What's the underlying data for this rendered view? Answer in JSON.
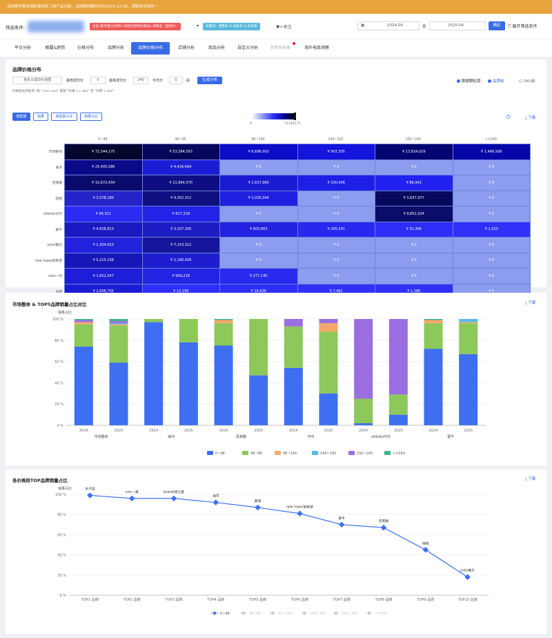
{
  "banner": {
    "text": "试用账号暂未授权使用到了新产品功能，试用期到期时间为2025-12-28，请联系试用同一"
  },
  "filter": {
    "label": "筛选条件:",
    "tag_red": "主品 海河/富力/深圳>日历的/新款生鲜品>调味品（品牌价）",
    "tag_cyan": "关键词：调整买 ot 具备买 ot 利润率",
    "follow": "+关注",
    "start_date": "2024-04",
    "to": "至",
    "end_date": "2025-04",
    "ok": "确定",
    "expand": "展开筛选条件"
  },
  "tabs": [
    {
      "label": "平台分析"
    },
    {
      "label": "概要&趋势"
    },
    {
      "label": "价格分布"
    },
    {
      "label": "品牌分析"
    },
    {
      "label": "品牌价格分布"
    },
    {
      "label": "店铺分析"
    },
    {
      "label": "商品分析"
    },
    {
      "label": "自定义分析"
    },
    {
      "label": "消费者画像"
    },
    {
      "label": "海外电商洞察"
    }
  ],
  "price_dist": {
    "title": "品牌价格分布",
    "custom_range": "自定义成交价范围",
    "min_label": "最低成交价",
    "min_value": "0",
    "max_label": "最高成交价",
    "max_value": "240",
    "avg_label": "平均分",
    "avg_value": "5",
    "seg": "段",
    "generate": "生成分布",
    "hint": "价格段左闭右开, 如: \"xxx~xxx\" 意指 \"价格 >= xxx\" 且 \"价格 < xxx\"",
    "radio_label": "数据颗粒度:",
    "radio_brand": "品牌级",
    "radio_sku": "SKU级",
    "view_buttons": [
      "销售额",
      "销量",
      "销售额占比",
      "销量占比"
    ],
    "legend_min": "0",
    "legend_max": "72344175",
    "download": "下载"
  },
  "heatmap": {
    "columns": [
      "0~48",
      "48~96",
      "96~144",
      "144~192",
      "192~240",
      ">=240"
    ],
    "rows": [
      {
        "brand": "市场整体",
        "cells": [
          "¥ 72,344,175",
          "¥ 53,384,563",
          "¥ 6,696,002",
          "¥ 907,305",
          "¥ 13,824,029",
          "¥ 1,466,508"
        ],
        "colors": [
          "#05052e",
          "#06065a",
          "#0c0cc8",
          "#1414dc",
          "#050572",
          "#0606a8"
        ]
      },
      {
        "brand": "海河",
        "cells": [
          "¥ 25,405,586",
          "¥ 4,416,694",
          "¥ 0",
          "¥ 0",
          "¥ 0",
          "¥ 0"
        ],
        "colors": [
          "#0a0a88",
          "#1d1dd6",
          "#8c9cef",
          "#8c9cef",
          "#8c9cef",
          "#8c9cef"
        ]
      },
      {
        "brand": "百菲酪",
        "cells": [
          "¥ 15,672,434",
          "¥ 11,864,370",
          "¥ 1,637,960",
          "¥ 330,406",
          "¥ 86,942",
          "¥ 0"
        ],
        "colors": [
          "#0b0b6e",
          "#0e0e82",
          "#1b1bd4",
          "#1e1ee6",
          "#2222f0",
          "#8c9cef"
        ]
      },
      {
        "brand": "桂格",
        "cells": [
          "¥ 3,378,180",
          "¥ 9,352,312",
          "¥ 1,030,344",
          "¥ 0",
          "¥ 3,837,977",
          "¥ 0"
        ],
        "colors": [
          "#2424c8",
          "#0f0f80",
          "#2020e0",
          "#8c9cef",
          "#08085c",
          "#8c9cef"
        ]
      },
      {
        "brand": "sikkidsi可仔",
        "cells": [
          "¥ 94,321",
          "¥ 817,318",
          "¥ 0",
          "¥ 0",
          "¥ 9,851,524",
          "¥ 0"
        ],
        "colors": [
          "#2b2bf4",
          "#2323e8",
          "#8c9cef",
          "#8c9cef",
          "#0c0c6a",
          "#8c9cef"
        ]
      },
      {
        "brand": "蒙牛",
        "cells": [
          "¥ 4,628,813",
          "¥ 3,107,330",
          "¥ 603,863",
          "¥ 265,541",
          "¥ 31,306",
          "¥ 1,523"
        ],
        "colors": [
          "#1a1ac0",
          "#1c1cc4",
          "#2222e0",
          "#2828f0",
          "#2e2ef8",
          "#3030fa"
        ]
      },
      {
        "brand": "julio/菊乐",
        "cells": [
          "¥ 1,304,623",
          "¥ 7,153,312",
          "¥ 0",
          "¥ 0",
          "¥ 0",
          "¥ 0"
        ],
        "colors": [
          "#2222dc",
          "#15159c",
          "#8c9cef",
          "#8c9cef",
          "#8c9cef",
          "#8c9cef"
        ]
      },
      {
        "brand": "new hope/新希望",
        "cells": [
          "¥ 5,215,236",
          "¥ 2,180,429",
          "¥ 0",
          "¥ 0",
          "¥ 0",
          "¥ 0"
        ],
        "colors": [
          "#1717b8",
          "#1e1ed0",
          "#8c9cef",
          "#8c9cef",
          "#8c9cef",
          "#8c9cef"
        ]
      },
      {
        "brand": "oato一利",
        "cells": [
          "¥ 1,822,547",
          "¥ 909,218",
          "¥ 277,145",
          "¥ 0",
          "¥ 0",
          "¥ 0"
        ],
        "colors": [
          "#1e1ed8",
          "#2424e4",
          "#2a2aee",
          "#8c9cef",
          "#8c9cef",
          "#8c9cef"
        ]
      },
      {
        "brand": "光明",
        "cells": [
          "¥ 2,606,705",
          "¥ 13,199",
          "¥ 18,636",
          "¥ 7,482",
          "¥ 1,186",
          "¥ 0"
        ],
        "colors": [
          "#1c1cd2",
          "#2e2ef8",
          "#2e2ef6",
          "#3030fa",
          "#3030fa",
          "#8c9cef"
        ]
      }
    ]
  },
  "share_chart": {
    "title": "市场整体 & TOP5品牌销量占比对比",
    "download": "下载",
    "ylabel": "销量占比",
    "yticks": [
      "100 %",
      "80 %",
      "60 %",
      "40 %",
      "20 %",
      "0 %"
    ]
  },
  "top_chart": {
    "title": "各价格段TOP品牌销量占比",
    "download": "下载",
    "ylabel": "销量占比",
    "yticks": [
      "100 %",
      "80 %",
      "60 %",
      "40 %",
      "20 %",
      "0 %"
    ]
  },
  "chart_data": [
    {
      "type": "bar",
      "stacked": true,
      "title": "市场整体 & TOP5品牌销量占比对比",
      "ylabel": "销量占比",
      "ylim": [
        0,
        100
      ],
      "unit": "%",
      "categories": [
        "2024",
        "2025",
        "2024",
        "2025",
        "2024",
        "2025",
        "2024",
        "2025",
        "2024",
        "2025",
        "2024",
        "2025"
      ],
      "groups": [
        "市场整体",
        "海河",
        "百菲酪",
        "可可",
        "sikkidsi可仔",
        "蒙牛"
      ],
      "series": [
        {
          "name": "0~48",
          "color": "#3d6ff0",
          "values": [
            74,
            59,
            97,
            78,
            75,
            47,
            54,
            30,
            2,
            10,
            72,
            67
          ]
        },
        {
          "name": "48~96",
          "color": "#8cc85a",
          "values": [
            21,
            35,
            3,
            22,
            21,
            53,
            39,
            58,
            23,
            19,
            24,
            29
          ]
        },
        {
          "name": "96~144",
          "color": "#f5a86a",
          "values": [
            2,
            1,
            0,
            0,
            3,
            0,
            0,
            8,
            0,
            0,
            3,
            1
          ]
        },
        {
          "name": "144~192",
          "color": "#5ab9e8",
          "values": [
            0,
            1,
            0,
            0,
            0,
            0,
            0,
            0,
            0,
            0,
            0,
            3
          ]
        },
        {
          "name": "192~240",
          "color": "#9b6fe0",
          "values": [
            2,
            2,
            0,
            0,
            0,
            0,
            7,
            4,
            75,
            71,
            0,
            0
          ]
        },
        {
          "name": ">=240",
          "color": "#3cb48c",
          "values": [
            1,
            2,
            0,
            0,
            1,
            0,
            0,
            0,
            0,
            0,
            1,
            0
          ]
        }
      ]
    },
    {
      "type": "line",
      "title": "各价格段TOP品牌销量占比",
      "ylabel": "销量占比",
      "ylim": [
        0,
        100
      ],
      "unit": "%",
      "categories": [
        "TOP1 品牌",
        "TOP2 品牌",
        "TOP3 品牌",
        "TOP4 品牌",
        "TOP5 品牌",
        "TOP6 品牌",
        "TOP7 品牌",
        "TOP8 品牌",
        "TOP9 品牌",
        "TOP10 品牌"
      ],
      "series": [
        {
          "name": "0~48",
          "color": "#3d6ff0",
          "values": [
            99,
            96,
            96,
            92,
            87,
            81,
            70,
            67,
            45,
            18
          ],
          "labels": [
            "宇子园",
            "nmr一再",
            "brand/德兰霍",
            "海河",
            "蒙语",
            "new hope/新希望",
            "蒙牛",
            "百菲酪",
            "桂格",
            "julio/菊乐"
          ]
        }
      ],
      "legend": [
        "0~48",
        "48~96",
        "96~144",
        "144~192",
        "192~240",
        ">=240"
      ]
    }
  ]
}
